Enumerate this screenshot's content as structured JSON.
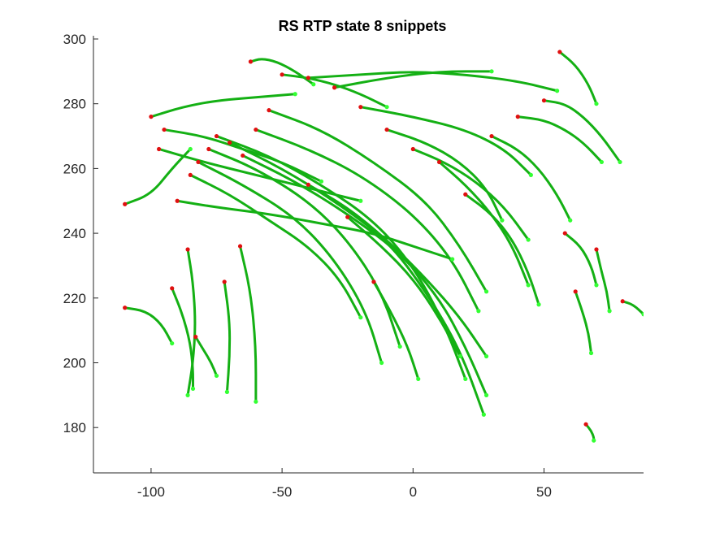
{
  "chart_data": {
    "type": "line",
    "title": "RS  RTP state 8 snippets",
    "xlabel": "",
    "ylabel": "",
    "xlim": [
      -122,
      88
    ],
    "ylim": [
      166,
      301
    ],
    "xticks": [
      -100,
      -50,
      0,
      50
    ],
    "xtick_labels": [
      "-100",
      "-50",
      "0",
      "50"
    ],
    "yticks": [
      180,
      200,
      220,
      240,
      260,
      280,
      300
    ],
    "ytick_labels": [
      "180",
      "200",
      "220",
      "240",
      "260",
      "280",
      "300"
    ],
    "grid": false,
    "legend": "none",
    "colors": {
      "trajectory": "#14b014",
      "start_marker": "#e01010",
      "end_marker": "#33ff33"
    },
    "series_note_count": 40,
    "series": [
      {
        "x": [
          -110,
          -100,
          -92,
          -85
        ],
        "y": [
          249,
          252,
          260,
          266
        ]
      },
      {
        "x": [
          -110,
          -102,
          -96,
          -92
        ],
        "y": [
          217,
          216,
          212,
          206
        ]
      },
      {
        "x": [
          -100,
          -88,
          -75,
          -60,
          -45
        ],
        "y": [
          276,
          279,
          281,
          282,
          283
        ]
      },
      {
        "x": [
          -97,
          -80,
          -60,
          -40,
          -20
        ],
        "y": [
          266,
          262,
          258,
          254,
          250
        ]
      },
      {
        "x": [
          -95,
          -80,
          -65,
          -50,
          -35
        ],
        "y": [
          272,
          270,
          266,
          262,
          256
        ]
      },
      {
        "x": [
          -92,
          -88,
          -85,
          -84,
          -84
        ],
        "y": [
          223,
          215,
          206,
          198,
          192
        ]
      },
      {
        "x": [
          -86,
          -84,
          -83,
          -84,
          -86
        ],
        "y": [
          235,
          225,
          212,
          200,
          190
        ]
      },
      {
        "x": [
          -83,
          -80,
          -77,
          -75
        ],
        "y": [
          208,
          204,
          200,
          196
        ]
      },
      {
        "x": [
          -72,
          -70,
          -70,
          -71
        ],
        "y": [
          225,
          213,
          202,
          191
        ]
      },
      {
        "x": [
          -66,
          -62,
          -60,
          -60
        ],
        "y": [
          236,
          222,
          205,
          188
        ]
      },
      {
        "x": [
          -85,
          -70,
          -55,
          -40,
          -28,
          -20
        ],
        "y": [
          258,
          252,
          244,
          236,
          226,
          214
        ]
      },
      {
        "x": [
          -82,
          -65,
          -45,
          -30,
          -18,
          -12
        ],
        "y": [
          262,
          255,
          245,
          232,
          216,
          200
        ]
      },
      {
        "x": [
          -78,
          -60,
          -40,
          -25,
          -12,
          -5
        ],
        "y": [
          266,
          260,
          250,
          238,
          222,
          205
        ]
      },
      {
        "x": [
          -75,
          -55,
          -35,
          -15,
          0,
          12,
          20
        ],
        "y": [
          270,
          264,
          255,
          244,
          230,
          212,
          195
        ]
      },
      {
        "x": [
          -70,
          -50,
          -30,
          -10,
          5,
          18,
          27
        ],
        "y": [
          268,
          260,
          250,
          238,
          222,
          204,
          184
        ]
      },
      {
        "x": [
          -65,
          -45,
          -25,
          -5,
          10,
          20,
          28
        ],
        "y": [
          264,
          256,
          246,
          234,
          220,
          205,
          190
        ]
      },
      {
        "x": [
          -60,
          -40,
          -20,
          0,
          15,
          25
        ],
        "y": [
          272,
          266,
          258,
          246,
          232,
          216
        ]
      },
      {
        "x": [
          -55,
          -35,
          -15,
          5,
          18,
          28
        ],
        "y": [
          278,
          272,
          262,
          250,
          236,
          222
        ]
      },
      {
        "x": [
          -62,
          -58,
          -52,
          -45,
          -38
        ],
        "y": [
          293,
          294,
          293,
          290,
          286
        ]
      },
      {
        "x": [
          -50,
          -40,
          -30,
          -20,
          -10
        ],
        "y": [
          289,
          288,
          286,
          283,
          279
        ]
      },
      {
        "x": [
          -40,
          -20,
          0,
          20,
          40,
          55
        ],
        "y": [
          288,
          289,
          290,
          289,
          287,
          284
        ]
      },
      {
        "x": [
          -30,
          -10,
          10,
          30
        ],
        "y": [
          285,
          288,
          290,
          290
        ]
      },
      {
        "x": [
          -20,
          0,
          20,
          35,
          45
        ],
        "y": [
          279,
          276,
          272,
          266,
          258
        ]
      },
      {
        "x": [
          -10,
          5,
          18,
          28,
          34
        ],
        "y": [
          272,
          268,
          262,
          254,
          244
        ]
      },
      {
        "x": [
          0,
          12,
          24,
          35,
          44
        ],
        "y": [
          266,
          262,
          256,
          248,
          238
        ]
      },
      {
        "x": [
          10,
          20,
          30,
          38,
          44
        ],
        "y": [
          262,
          255,
          246,
          236,
          224
        ]
      },
      {
        "x": [
          20,
          30,
          38,
          44,
          48
        ],
        "y": [
          252,
          246,
          238,
          228,
          218
        ]
      },
      {
        "x": [
          30,
          40,
          48,
          55,
          60
        ],
        "y": [
          270,
          266,
          260,
          252,
          244
        ]
      },
      {
        "x": [
          40,
          50,
          58,
          65,
          72
        ],
        "y": [
          276,
          275,
          272,
          268,
          262
        ]
      },
      {
        "x": [
          50,
          58,
          65,
          72,
          79
        ],
        "y": [
          281,
          280,
          276,
          270,
          262
        ]
      },
      {
        "x": [
          56,
          62,
          67,
          70
        ],
        "y": [
          296,
          292,
          286,
          280
        ]
      },
      {
        "x": [
          -40,
          -25,
          -10,
          5,
          18,
          28
        ],
        "y": [
          255,
          248,
          238,
          226,
          214,
          202
        ]
      },
      {
        "x": [
          -25,
          -12,
          0,
          10,
          18
        ],
        "y": [
          245,
          236,
          226,
          214,
          202
        ]
      },
      {
        "x": [
          -15,
          -8,
          -2,
          2
        ],
        "y": [
          225,
          215,
          205,
          195
        ]
      },
      {
        "x": [
          58,
          64,
          68,
          70
        ],
        "y": [
          240,
          236,
          230,
          224
        ]
      },
      {
        "x": [
          62,
          65,
          67,
          68
        ],
        "y": [
          222,
          215,
          209,
          203
        ]
      },
      {
        "x": [
          70,
          72,
          74,
          75
        ],
        "y": [
          235,
          228,
          222,
          216
        ]
      },
      {
        "x": [
          80,
          84,
          88
        ],
        "y": [
          219,
          218,
          215
        ]
      },
      {
        "x": [
          66,
          68,
          69,
          69
        ],
        "y": [
          181,
          179,
          177,
          176
        ]
      },
      {
        "x": [
          -90,
          -75,
          -55,
          -35,
          -15,
          0,
          15
        ],
        "y": [
          250,
          248,
          246,
          243,
          240,
          236,
          232
        ]
      }
    ]
  }
}
